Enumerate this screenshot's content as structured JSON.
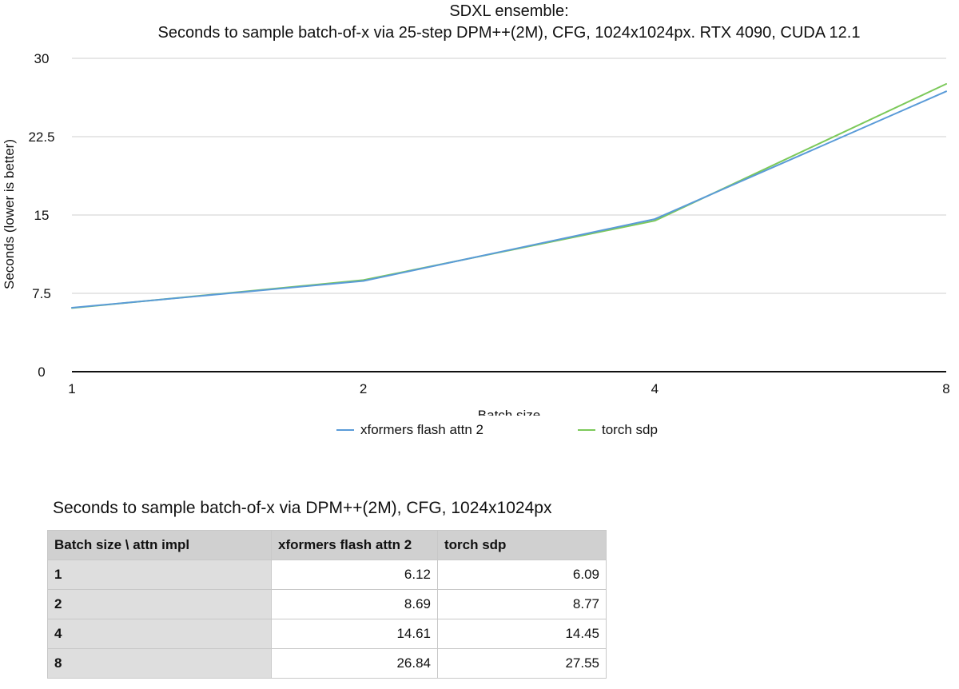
{
  "chart_data": {
    "type": "line",
    "title_line1": "SDXL ensemble:",
    "title_line2": "Seconds to sample batch-of-x via 25-step DPM++(2M), CFG, 1024x1024px. RTX 4090, CUDA 12.1",
    "xlabel": "Batch size",
    "ylabel": "Seconds (lower is better)",
    "categories": [
      "1",
      "2",
      "4",
      "8"
    ],
    "yticks": [
      "0",
      "7.5",
      "15",
      "22.5",
      "30"
    ],
    "ylim": [
      0,
      30
    ],
    "grid": true,
    "legend_position": "bottom",
    "series": [
      {
        "name": "xformers flash attn 2",
        "values": [
          6.12,
          8.69,
          14.61,
          26.84
        ],
        "color": "#5a9bd8"
      },
      {
        "name": "torch sdp",
        "values": [
          6.09,
          8.77,
          14.45,
          27.55
        ],
        "color": "#7cc95a"
      }
    ]
  },
  "table": {
    "caption": "Seconds to sample batch-of-x via DPM++(2M), CFG, 1024x1024px",
    "headers": [
      "Batch size \\ attn impl",
      "xformers flash attn 2",
      "torch sdp"
    ],
    "rows": [
      [
        "1",
        "6.12",
        "6.09"
      ],
      [
        "2",
        "8.69",
        "8.77"
      ],
      [
        "4",
        "14.61",
        "14.45"
      ],
      [
        "8",
        "26.84",
        "27.55"
      ]
    ]
  }
}
